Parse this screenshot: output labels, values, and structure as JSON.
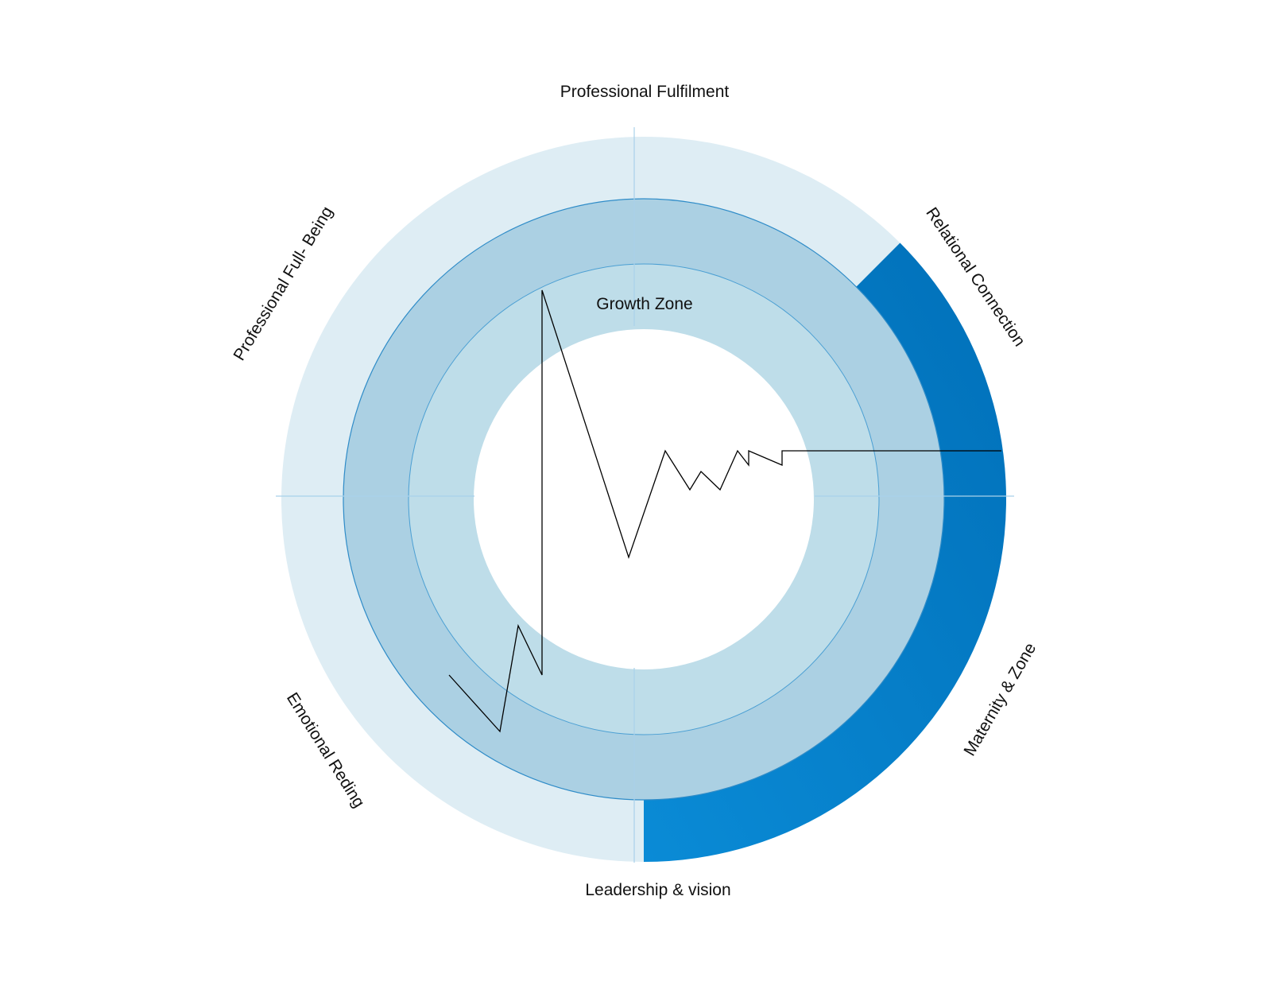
{
  "labels": {
    "top": "Professional Fulfilment",
    "upper_right": "Relational Connection",
    "lower_right": "Maternity & Zone",
    "bottom": "Leadership & vision",
    "lower_left": "Emotional Reding",
    "upper_left": "Professional Full- Being",
    "center": "Growth Zone"
  },
  "colors": {
    "outer_ring": "#deedf4",
    "middle_ring": "#abd0e3",
    "inner_ring": "#bedde9",
    "highlight_start": "#0a8bd6",
    "highlight_end": "#0170b9",
    "ring_border": "#4b9fd3",
    "axis_line": "#a9d1ea",
    "trace": "#000000"
  },
  "highlighted_segment": {
    "description_start": "Relational Connection",
    "description_end": "Leadership & vision"
  }
}
